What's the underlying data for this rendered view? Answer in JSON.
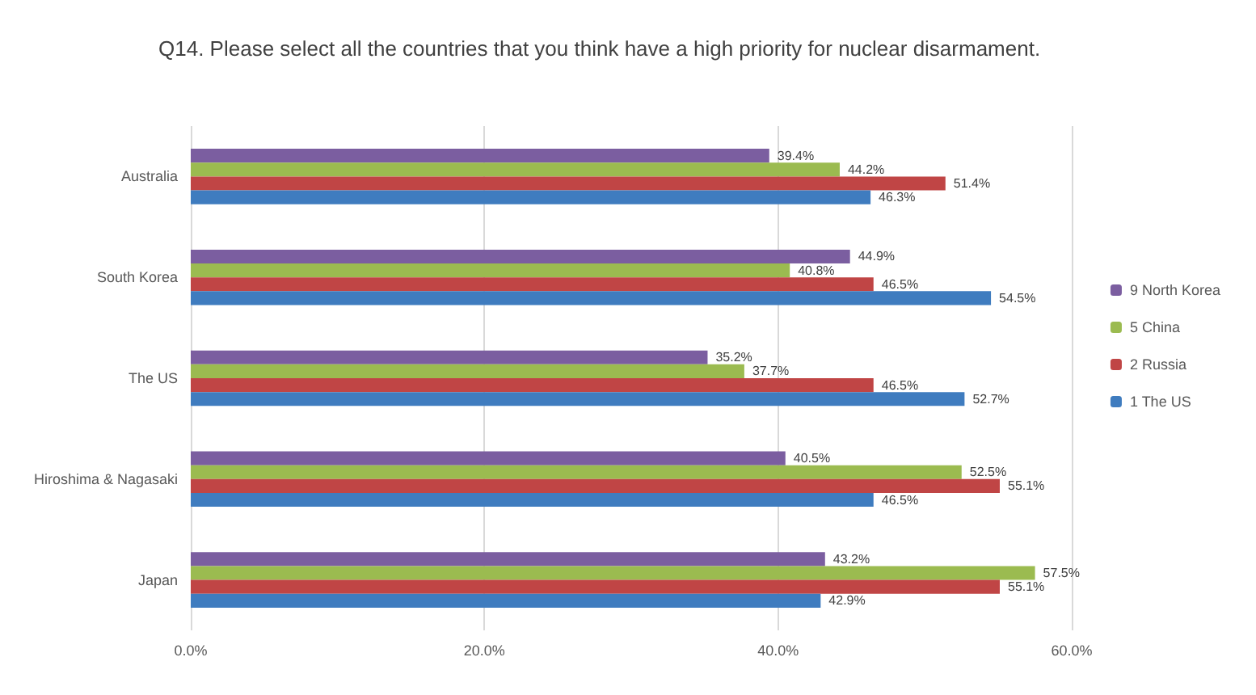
{
  "chart_data": {
    "type": "bar",
    "orientation": "horizontal",
    "title": "Q14. Please select all the countries that you think have a high priority for nuclear disarmament.",
    "categories": [
      "Australia",
      "South Korea",
      "The US",
      "Hiroshima & Nagasaki",
      "Japan"
    ],
    "series": [
      {
        "name": "9 North Korea",
        "color": "#7b5ea0",
        "values": [
          39.4,
          44.9,
          35.2,
          40.5,
          43.2
        ],
        "value_labels": [
          "39.4%",
          "44.9%",
          "35.2%",
          "40.5%",
          "43.2%"
        ]
      },
      {
        "name": "5 China",
        "color": "#9bbb50",
        "values": [
          44.2,
          40.8,
          37.7,
          52.5,
          57.5
        ],
        "value_labels": [
          "44.2%",
          "40.8%",
          "37.7%",
          "52.5%",
          "57.5%"
        ]
      },
      {
        "name": "2 Russia",
        "color": "#c04545",
        "values": [
          51.4,
          46.5,
          46.5,
          55.1,
          55.1
        ],
        "value_labels": [
          "51.4%",
          "46.5%",
          "46.5%",
          "55.1%",
          "55.1%"
        ]
      },
      {
        "name": "1 The US",
        "color": "#3f7cbf",
        "values": [
          46.3,
          54.5,
          52.7,
          46.5,
          42.9
        ],
        "value_labels": [
          "46.3%",
          "54.5%",
          "52.7%",
          "46.5%",
          "42.9%"
        ]
      }
    ],
    "xlim": [
      0,
      60
    ],
    "xticks": [
      {
        "value": 0,
        "label": "0.0%"
      },
      {
        "value": 20,
        "label": "20.0%"
      },
      {
        "value": 40,
        "label": "40.0%"
      },
      {
        "value": 60,
        "label": "60.0%"
      }
    ],
    "grid": "x",
    "legend": "right"
  }
}
